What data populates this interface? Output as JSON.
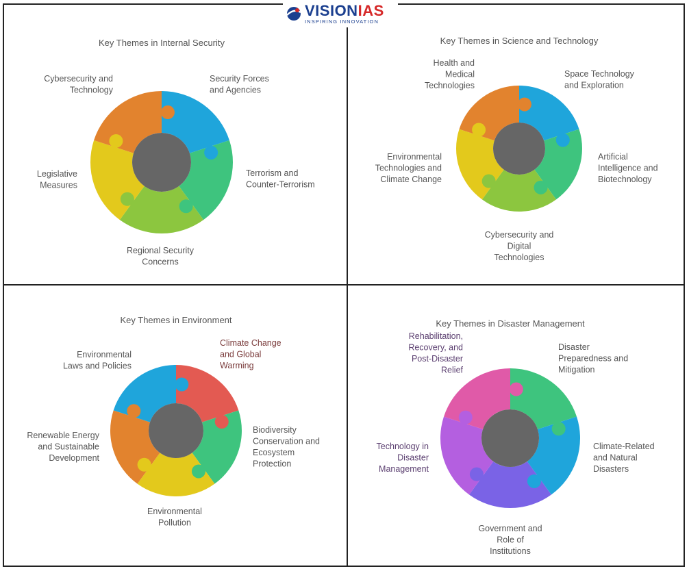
{
  "brand": {
    "name_part1": "VISION",
    "name_part2": "IAS",
    "tagline": "INSPIRING INNOVATION",
    "colors": {
      "primary": "#1b3f8f",
      "accent": "#d62828"
    }
  },
  "panels": [
    {
      "title": "Key Themes in Internal Security",
      "segments": [
        {
          "lines": [
            "Security Forces",
            "and Agencies"
          ],
          "color": "#1fa5db"
        },
        {
          "lines": [
            "Terrorism and",
            "Counter-Terrorism"
          ],
          "color": "#3ec47e"
        },
        {
          "lines": [
            "Regional Security",
            "Concerns"
          ],
          "color": "#8cc63f"
        },
        {
          "lines": [
            "Legislative",
            "Measures"
          ],
          "color": "#e3c91c"
        },
        {
          "lines": [
            "Cybersecurity and",
            "Technology"
          ],
          "color": "#e2832e"
        }
      ]
    },
    {
      "title": "Key Themes in Science and Technology",
      "segments": [
        {
          "lines": [
            "Space Technology",
            "and Exploration"
          ],
          "color": "#1fa5db"
        },
        {
          "lines": [
            "Artificial",
            "Intelligence and",
            "Biotechnology"
          ],
          "color": "#3ec47e"
        },
        {
          "lines": [
            "Cybersecurity and",
            "Digital",
            "Technologies"
          ],
          "color": "#8cc63f"
        },
        {
          "lines": [
            "Environmental",
            "Technologies and",
            "Climate Change"
          ],
          "color": "#e3c91c"
        },
        {
          "lines": [
            "Health and",
            "Medical",
            "Technologies"
          ],
          "color": "#e2832e"
        }
      ]
    },
    {
      "title": "Key Themes in Environment",
      "segments": [
        {
          "lines": [
            "Climate Change",
            "and Global",
            "Warming"
          ],
          "color": "#e35a52"
        },
        {
          "lines": [
            "Biodiversity",
            "Conservation and",
            "Ecosystem",
            "Protection"
          ],
          "color": "#3ec47e"
        },
        {
          "lines": [
            "Environmental",
            "Pollution"
          ],
          "color": "#e3c91c"
        },
        {
          "lines": [
            "Renewable Energy",
            "and Sustainable",
            "Development"
          ],
          "color": "#e2832e"
        },
        {
          "lines": [
            "Environmental",
            "Laws and Policies"
          ],
          "color": "#1fa5db"
        }
      ]
    },
    {
      "title": "Key Themes in Disaster Management",
      "segments": [
        {
          "lines": [
            "Disaster",
            "Preparedness and",
            "Mitigation"
          ],
          "color": "#3ec47e"
        },
        {
          "lines": [
            "Climate-Related",
            "and Natural",
            "Disasters"
          ],
          "color": "#1fa5db"
        },
        {
          "lines": [
            "Government and",
            "Role of",
            "Institutions"
          ],
          "color": "#7a63e6"
        },
        {
          "lines": [
            "Technology in",
            "Disaster",
            "Management"
          ],
          "color": "#b45fe0"
        },
        {
          "lines": [
            "Rehabilitation,",
            "Recovery, and",
            "Post-Disaster",
            "Relief"
          ],
          "color": "#e05aa8"
        }
      ]
    }
  ],
  "hub_color": "#666666"
}
